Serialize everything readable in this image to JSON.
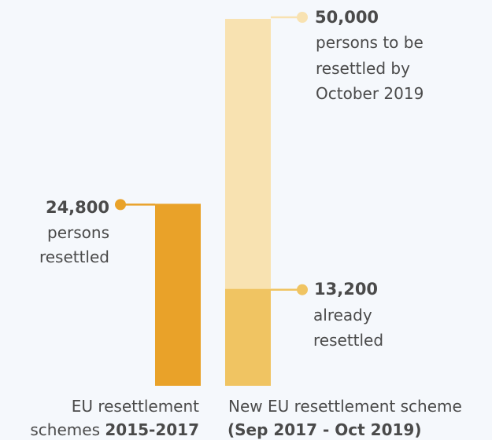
{
  "chart_data": {
    "type": "bar",
    "categories": [
      {
        "line1": "EU resettlement",
        "line2_prefix": "schemes ",
        "line2_bold": "2015-2017"
      },
      {
        "line1": "New EU resettlement scheme",
        "line2_prefix": "",
        "line2_bold": "(Sep 2017 - Oct 2019)"
      }
    ],
    "series": [
      {
        "values": [
          24800,
          50000
        ],
        "colors": [
          "#e9a229",
          "#f8e2b1"
        ]
      },
      {
        "values": [
          null,
          13200
        ],
        "colors": [
          null,
          "#f0c462"
        ]
      }
    ],
    "annotations": [
      {
        "value_label": "24,800",
        "lines": [
          "persons",
          "resettled"
        ],
        "marker_color": "#e9a229"
      },
      {
        "value_label": "50,000",
        "lines": [
          "persons to be",
          "resettled by",
          "October 2019"
        ],
        "marker_color": "#f8e2b1"
      },
      {
        "value_label": "13,200",
        "lines": [
          "already",
          "resettled"
        ],
        "marker_color": "#f0c462"
      }
    ],
    "ylim": [
      0,
      50000
    ],
    "grid": false,
    "legend": "none"
  }
}
